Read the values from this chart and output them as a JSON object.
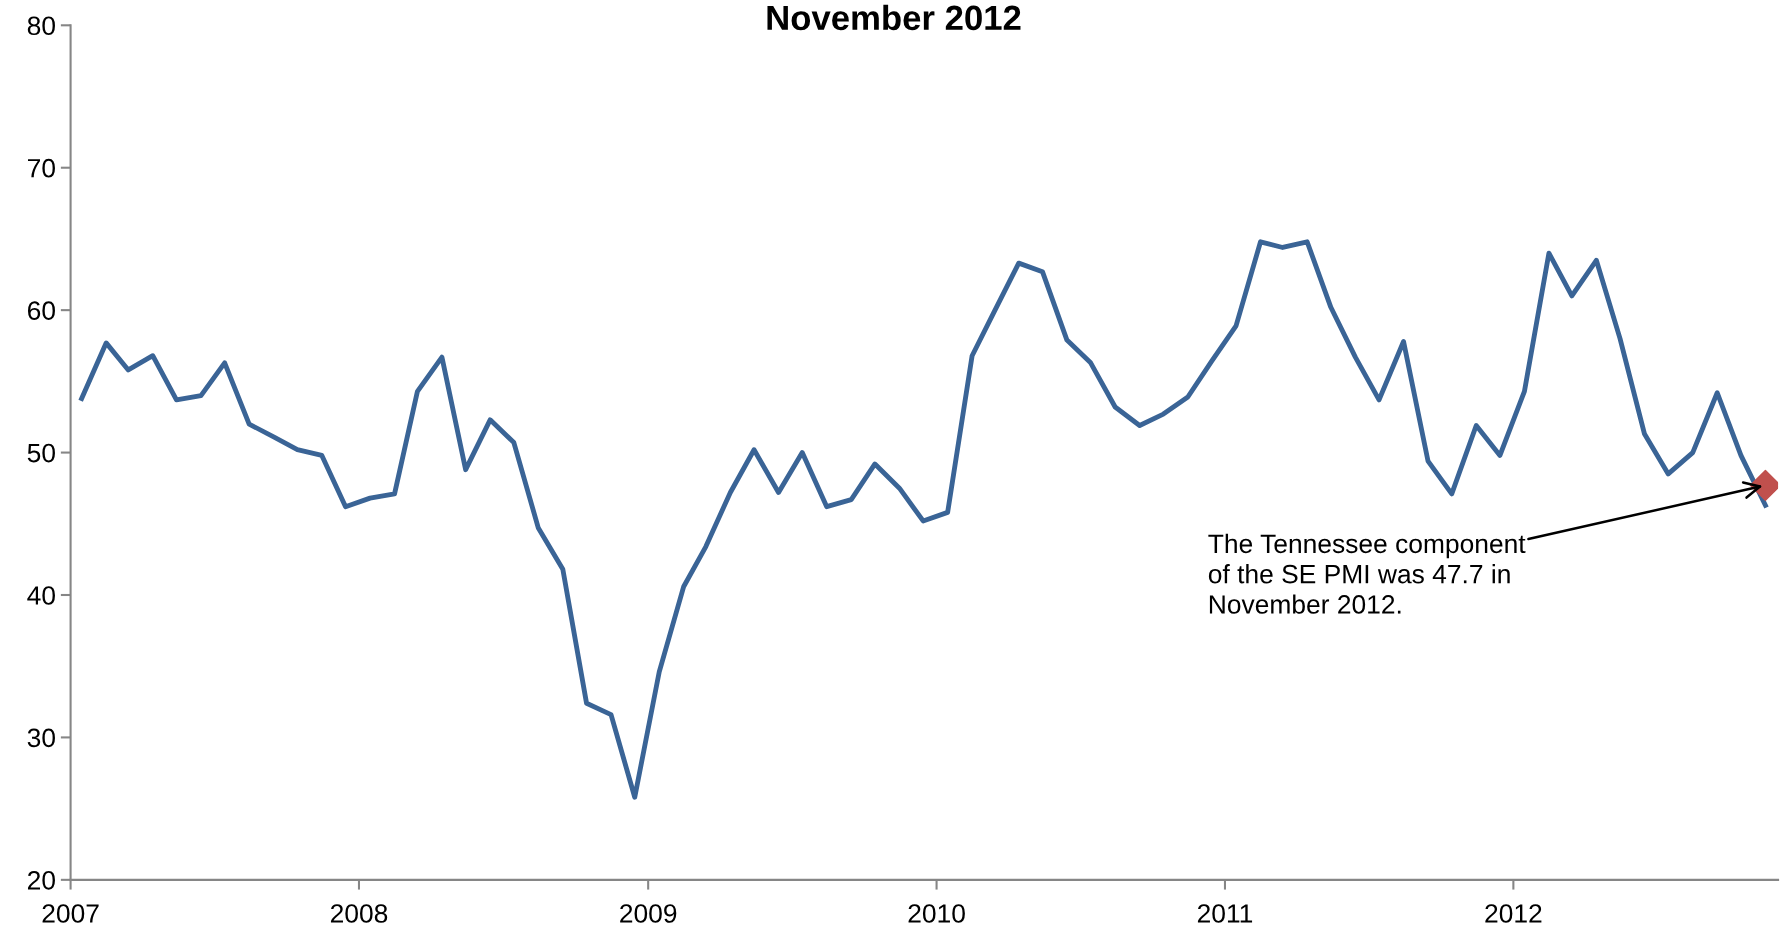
{
  "chart_data": {
    "type": "line",
    "title": "November 2012",
    "x": [
      "2007-01-15",
      "2007-02-15",
      "2007-03-15",
      "2007-04-15",
      "2007-05-15",
      "2007-06-15",
      "2007-07-15",
      "2007-08-15",
      "2007-09-15",
      "2007-10-15",
      "2007-11-15",
      "2007-12-15",
      "2008-01-15",
      "2008-02-15",
      "2008-03-15",
      "2008-04-15",
      "2008-05-15",
      "2008-06-15",
      "2008-07-15",
      "2008-08-15",
      "2008-09-15",
      "2008-10-15",
      "2008-11-15",
      "2008-12-15",
      "2009-01-15",
      "2009-02-15",
      "2009-03-15",
      "2009-04-15",
      "2009-05-15",
      "2009-06-15",
      "2009-07-15",
      "2009-08-15",
      "2009-09-15",
      "2009-10-15",
      "2009-11-15",
      "2009-12-15",
      "2010-01-15",
      "2010-02-15",
      "2010-03-15",
      "2010-04-15",
      "2010-05-15",
      "2010-06-15",
      "2010-07-15",
      "2010-08-15",
      "2010-09-15",
      "2010-10-15",
      "2010-11-15",
      "2010-12-15",
      "2011-01-15",
      "2011-02-15",
      "2011-03-15",
      "2011-04-15",
      "2011-05-15",
      "2011-06-15",
      "2011-07-15",
      "2011-08-15",
      "2011-09-15",
      "2011-10-15",
      "2011-11-15",
      "2011-12-15",
      "2012-01-15",
      "2012-02-15",
      "2012-03-15",
      "2012-04-15",
      "2012-05-15",
      "2012-06-15",
      "2012-07-15",
      "2012-08-15",
      "2012-09-15",
      "2012-10-15",
      "2012-11-15"
    ],
    "series": [
      {
        "color": "#3a6496",
        "values": [
          53.8,
          57.7,
          55.8,
          56.8,
          53.7,
          54.0,
          56.3,
          52.0,
          51.1,
          50.2,
          49.8,
          46.2,
          46.8,
          47.1,
          54.3,
          56.7,
          48.8,
          52.3,
          50.7,
          44.7,
          41.8,
          32.4,
          31.6,
          25.8,
          34.6,
          40.6,
          43.4,
          47.2,
          50.2,
          47.2,
          50.0,
          46.2,
          46.7,
          49.2,
          47.5,
          45.2,
          45.8,
          56.8,
          59.9,
          63.3,
          62.7,
          57.9,
          56.3,
          53.2,
          51.9,
          52.7,
          53.9,
          56.4,
          58.9,
          64.8,
          64.4,
          64.8,
          60.2,
          56.7,
          53.7,
          57.8,
          49.4,
          47.1,
          51.9,
          49.8,
          54.3,
          64.0,
          61.0,
          63.5,
          58.0,
          51.3,
          48.5,
          50.0,
          54.2,
          49.8,
          46.3
        ]
      },
      {
        "type": "scatter",
        "color": "#c0504d",
        "marker": "diamond",
        "x": [
          "2012-11-15"
        ],
        "values": [
          47.7
        ]
      }
    ],
    "xlim": [
      "2007-01-01",
      "2012-12-01"
    ],
    "xticks": [
      {
        "value": "2007-01-01",
        "label": "2007"
      },
      {
        "value": "2008-01-01",
        "label": "2008"
      },
      {
        "value": "2009-01-01",
        "label": "2009"
      },
      {
        "value": "2010-01-01",
        "label": "2010"
      },
      {
        "value": "2011-01-01",
        "label": "2011"
      },
      {
        "value": "2012-01-01",
        "label": "2012"
      }
    ],
    "ylim": [
      20,
      80
    ],
    "yticks": [
      20,
      30,
      40,
      50,
      60,
      70,
      80
    ],
    "annotations": [
      {
        "text": "The Tennessee component\nof the SE PMI was 47.7 in\nNovember 2012.",
        "x": "2012-11-15",
        "y": 47.7
      }
    ]
  }
}
